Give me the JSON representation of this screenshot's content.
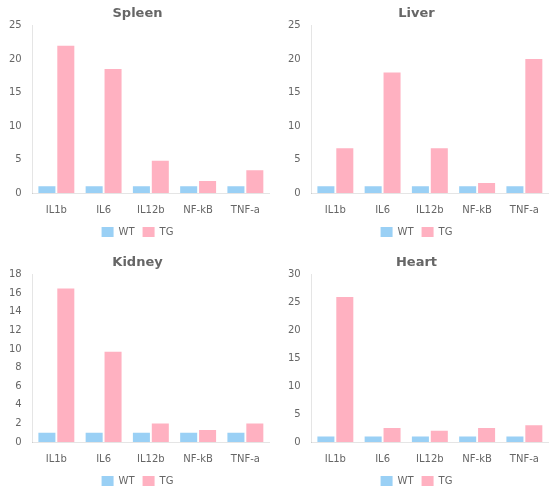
{
  "chart_data": [
    {
      "type": "bar",
      "title": "Spleen",
      "categories": [
        "IL1b",
        "IL6",
        "IL12b",
        "NF-kB",
        "TNF-a"
      ],
      "series": [
        {
          "name": "WT",
          "values": [
            1,
            1,
            1,
            1,
            1
          ]
        },
        {
          "name": "TG",
          "values": [
            22,
            18.5,
            4.8,
            1.8,
            3.4
          ]
        }
      ],
      "ylim": [
        0,
        25
      ],
      "yticks": [
        0,
        5,
        10,
        15,
        20,
        25
      ],
      "grid": false,
      "legend": "bottom"
    },
    {
      "type": "bar",
      "title": "Liver",
      "categories": [
        "IL1b",
        "IL6",
        "IL12b",
        "NF-kB",
        "TNF-a"
      ],
      "series": [
        {
          "name": "WT",
          "values": [
            1,
            1,
            1,
            1,
            1
          ]
        },
        {
          "name": "TG",
          "values": [
            6.7,
            18,
            6.7,
            1.5,
            20
          ]
        }
      ],
      "ylim": [
        0,
        25
      ],
      "yticks": [
        0,
        5,
        10,
        15,
        20,
        25
      ],
      "grid": false,
      "legend": "bottom"
    },
    {
      "type": "bar",
      "title": "Kidney",
      "categories": [
        "IL1b",
        "IL6",
        "IL12b",
        "NF-kB",
        "TNF-a"
      ],
      "series": [
        {
          "name": "WT",
          "values": [
            1,
            1,
            1,
            1,
            1
          ]
        },
        {
          "name": "TG",
          "values": [
            16.5,
            9.7,
            2.0,
            1.3,
            2.0
          ]
        }
      ],
      "ylim": [
        0,
        18
      ],
      "yticks": [
        0,
        2,
        4,
        6,
        8,
        10,
        12,
        14,
        16,
        18
      ],
      "grid": false,
      "legend": "bottom"
    },
    {
      "type": "bar",
      "title": "Heart",
      "categories": [
        "IL1b",
        "IL6",
        "IL12b",
        "NF-kB",
        "TNF-a"
      ],
      "series": [
        {
          "name": "WT",
          "values": [
            1,
            1,
            1,
            1,
            1
          ]
        },
        {
          "name": "TG",
          "values": [
            26,
            2.5,
            2.0,
            2.5,
            3.0
          ]
        }
      ],
      "ylim": [
        0,
        30
      ],
      "yticks": [
        0,
        5,
        10,
        15,
        20,
        25,
        30
      ],
      "grid": false,
      "legend": "bottom"
    }
  ]
}
